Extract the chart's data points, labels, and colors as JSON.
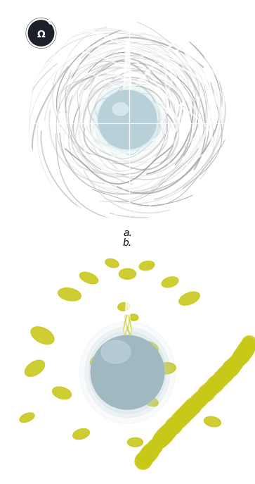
{
  "fig_width": 3.63,
  "fig_height": 6.87,
  "dpi": 100,
  "bg_color": "#ffffff",
  "panel_bg": "#1c2028",
  "label_fontsize": 10,
  "white": "#ffffff",
  "yellow_green": "#c8c818",
  "sphere_color_a": "#b8d0d8",
  "sphere_color_b": "#a0b8c0",
  "label_a": "a.",
  "label_b": "b."
}
